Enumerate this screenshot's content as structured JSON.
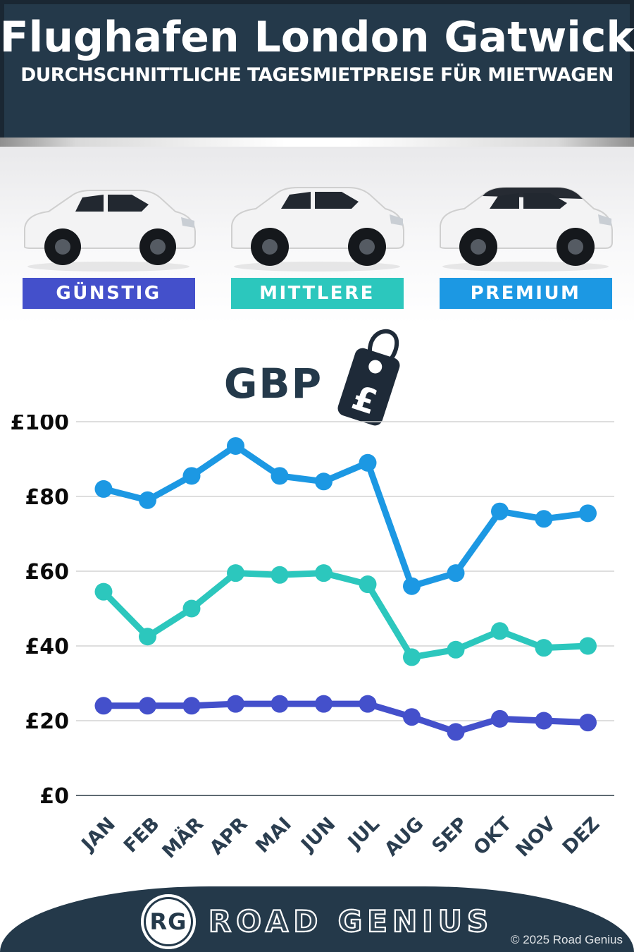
{
  "header": {
    "title": "Flughafen London Gatwick",
    "subtitle": "DURCHSCHNITTLICHE TAGESMIETPREISE FÜR MIETWAGEN",
    "background": "#24394a"
  },
  "categories": [
    {
      "label": "GÜNSTIG",
      "color": "#4450cb"
    },
    {
      "label": "MITTLERE",
      "color": "#2cc7bd"
    },
    {
      "label": "PREMIUM",
      "color": "#1c98e3"
    }
  ],
  "price_tag": {
    "symbol": "£"
  },
  "chart_data": {
    "type": "line",
    "title": "GBP",
    "categories": [
      "JAN",
      "FEB",
      "MÄR",
      "APR",
      "MAI",
      "JUN",
      "JUL",
      "AUG",
      "SEP",
      "OKT",
      "NOV",
      "DEZ"
    ],
    "series": [
      {
        "name": "PREMIUM",
        "color": "#1c98e3",
        "values": [
          82,
          79,
          85.5,
          93.5,
          85.5,
          84,
          89,
          56,
          59.5,
          76,
          74,
          75.5
        ]
      },
      {
        "name": "MITTLERE",
        "color": "#2cc7bd",
        "values": [
          54.5,
          42.5,
          50,
          59.5,
          59,
          59.5,
          56.5,
          37,
          39,
          44,
          39.5,
          40
        ]
      },
      {
        "name": "GÜNSTIG",
        "color": "#4450cb",
        "values": [
          24,
          24,
          24,
          24.5,
          24.5,
          24.5,
          24.5,
          21,
          17,
          20.5,
          20,
          19.5
        ]
      }
    ],
    "ylabel_prefix": "£",
    "yticks": [
      0,
      20,
      40,
      60,
      80,
      100
    ],
    "ylim": [
      0,
      105
    ],
    "grid": true,
    "legend": "none",
    "xlabel": "",
    "ylabel": ""
  },
  "footer": {
    "logo_initials": "RG",
    "brand": "ROAD GENIUS",
    "copyright": "© 2025 Road Genius"
  }
}
